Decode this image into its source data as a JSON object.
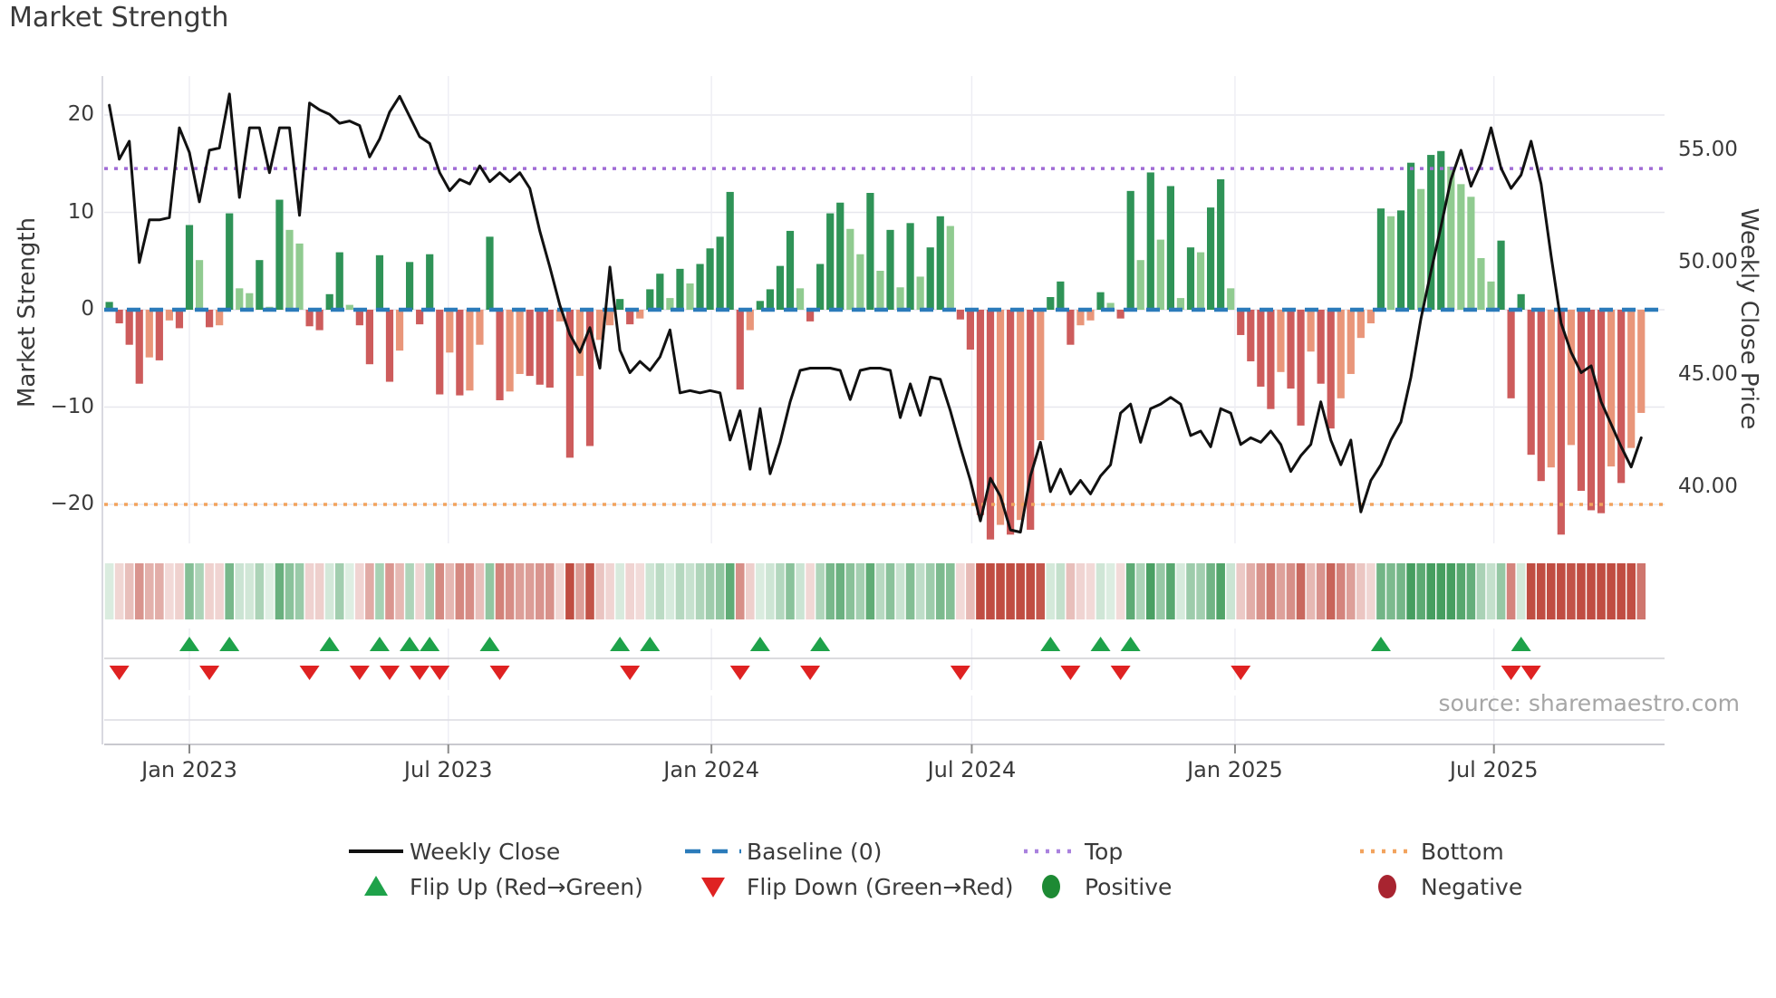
{
  "title": "Market Strength",
  "source": "source: sharemaestro.com",
  "y_left": {
    "label": "Market Strength",
    "ticks": [
      20,
      10,
      0,
      -10,
      -20
    ]
  },
  "y_right": {
    "label": "Weekly Close Price",
    "tick_labels": [
      "55.00",
      "50.00",
      "45.00",
      "40.00"
    ],
    "tick_values": [
      55,
      50,
      45,
      40
    ]
  },
  "x_axis": {
    "tick_labels": [
      "Jan 2023",
      "Jul 2023",
      "Jan 2024",
      "Jul 2024",
      "Jan 2025",
      "Jul 2025"
    ],
    "tick_weeks": [
      8.0,
      33.86,
      60.14,
      86.14,
      112.43,
      138.29
    ]
  },
  "legend": {
    "items": [
      {
        "label": "Weekly Close",
        "swatch": "line",
        "color": "#111111"
      },
      {
        "label": "Baseline (0)",
        "swatch": "dashes",
        "color": "#2b7bba"
      },
      {
        "label": "Top",
        "swatch": "dots",
        "color": "#a981de"
      },
      {
        "label": "Bottom",
        "swatch": "dots",
        "color": "#f2a35e"
      },
      {
        "label": "Flip Up (Red→Green)",
        "swatch": "triangle-up",
        "color": "#1ea24a"
      },
      {
        "label": "Flip Down (Green→Red)",
        "swatch": "triangle-down",
        "color": "#df2222"
      },
      {
        "label": "Positive",
        "swatch": "circle",
        "color": "#1d8a34"
      },
      {
        "label": "Negative",
        "swatch": "circle",
        "color": "#a82430"
      }
    ]
  },
  "colors": {
    "bar_pos_strong": "#2f9357",
    "bar_pos_soft": "#90cb90",
    "bar_neg_strong": "#cd5c5c",
    "bar_neg_soft": "#e9967a",
    "price_line": "#111111",
    "baseline": "#2b7bba",
    "top_line": "#a06cd5",
    "bottom_line": "#f2a35e",
    "flip_up": "#1ea24a",
    "flip_down": "#df2222",
    "grid": "#e7e7ee",
    "grid_v": "#ededf3",
    "axis_line": "#c9c9cf",
    "sub_line": "#dcdce2",
    "heat_pos_rgb": "70,158,96",
    "heat_neg_rgb": "192,77,66"
  },
  "chart_data": {
    "type": "bar+line",
    "x_unit": "weeks starting Nov 2022, one value per week",
    "title": "Market Strength",
    "ylabel_left": "Market Strength",
    "ylabel_right": "Weekly Close Price",
    "ylim_left": [
      -24,
      24
    ],
    "ylim_right": [
      37.5,
      58.3
    ],
    "top_level": 14.5,
    "bottom_level": -20,
    "baseline_level": 0,
    "legend_position": "bottom",
    "grid": true,
    "series": [
      {
        "name": "Strength",
        "type": "bar",
        "values": [
          0.8,
          -1.4,
          -3.6,
          -7.6,
          -4.9,
          -5.2,
          -1.1,
          -1.9,
          8.7,
          5.1,
          -1.8,
          -1.6,
          9.9,
          2.2,
          1.7,
          5.1,
          0.3,
          11.3,
          8.2,
          6.8,
          -1.7,
          -2.1,
          1.6,
          5.9,
          0.5,
          -1.6,
          -5.6,
          5.6,
          -7.4,
          -4.2,
          4.9,
          -1.5,
          5.7,
          -8.7,
          -4.4,
          -8.8,
          -8.3,
          -3.6,
          7.5,
          -9.3,
          -8.4,
          -6.6,
          -6.8,
          -7.7,
          -8.0,
          -1.2,
          -15.2,
          -6.8,
          -14.0,
          -3.1,
          -1.6,
          1.1,
          -1.5,
          -0.9,
          2.1,
          3.7,
          1.2,
          4.2,
          2.7,
          4.7,
          6.3,
          7.5,
          12.1,
          -8.2,
          -2.1,
          0.9,
          2.1,
          4.5,
          8.1,
          2.2,
          -1.2,
          4.7,
          9.9,
          11.0,
          8.3,
          5.7,
          12.0,
          4.0,
          8.2,
          2.3,
          8.9,
          3.4,
          6.4,
          9.6,
          8.6,
          -1.0,
          -4.1,
          -21.1,
          -23.6,
          -22.1,
          -23.1,
          -21.6,
          -22.6,
          -13.4,
          1.3,
          2.9,
          -3.6,
          -1.6,
          -1.1,
          1.8,
          0.7,
          -0.9,
          12.2,
          5.1,
          14.1,
          7.2,
          12.7,
          1.2,
          6.4,
          5.9,
          10.5,
          13.4,
          2.2,
          -2.6,
          -5.3,
          -7.9,
          -10.2,
          -6.4,
          -8.1,
          -11.9,
          -4.3,
          -7.6,
          -12.2,
          -9.1,
          -6.6,
          -2.9,
          -1.4,
          10.4,
          9.6,
          10.2,
          15.1,
          12.4,
          15.9,
          16.3,
          14.7,
          12.9,
          11.6,
          5.3,
          2.9,
          7.1,
          -9.1,
          1.6,
          -14.9,
          -17.6,
          -16.2,
          -23.1,
          -13.9,
          -18.6,
          -20.6,
          -20.9,
          -16.1,
          -17.8,
          -14.2,
          -10.6
        ]
      },
      {
        "name": "Weekly Close",
        "type": "line",
        "axis": "right",
        "values": [
          57.0,
          54.6,
          55.4,
          50.0,
          51.9,
          51.9,
          52.0,
          56.0,
          54.9,
          52.7,
          55.0,
          55.1,
          57.5,
          52.9,
          56.0,
          56.0,
          54.0,
          56.0,
          56.0,
          52.1,
          57.1,
          56.8,
          56.6,
          56.2,
          56.3,
          56.1,
          54.7,
          55.5,
          56.7,
          57.4,
          56.5,
          55.6,
          55.3,
          54.0,
          53.2,
          53.7,
          53.5,
          54.3,
          53.6,
          54.0,
          53.6,
          54.0,
          53.3,
          51.4,
          49.8,
          48.1,
          46.8,
          46.0,
          47.1,
          45.3,
          49.8,
          46.1,
          45.1,
          45.6,
          45.2,
          45.8,
          47.0,
          44.2,
          44.3,
          44.2,
          44.3,
          44.2,
          42.1,
          43.4,
          40.8,
          43.5,
          40.6,
          42.0,
          43.8,
          45.2,
          45.3,
          45.3,
          45.3,
          45.2,
          43.9,
          45.2,
          45.3,
          45.3,
          45.2,
          43.1,
          44.6,
          43.2,
          44.9,
          44.8,
          43.4,
          41.8,
          40.3,
          38.5,
          40.4,
          39.6,
          38.1,
          38.0,
          40.5,
          42.0,
          39.8,
          40.8,
          39.7,
          40.3,
          39.7,
          40.5,
          41.0,
          43.3,
          43.7,
          42.0,
          43.5,
          43.7,
          44.0,
          43.7,
          42.3,
          42.5,
          41.8,
          43.5,
          43.3,
          41.9,
          42.2,
          42.0,
          42.5,
          41.9,
          40.7,
          41.4,
          41.9,
          43.8,
          42.1,
          41.0,
          42.1,
          38.9,
          40.3,
          41.0,
          42.1,
          42.9,
          44.9,
          47.5,
          49.6,
          51.6,
          53.7,
          55.0,
          53.4,
          54.4,
          56.0,
          54.2,
          53.3,
          53.9,
          55.4,
          53.5,
          50.3,
          47.3,
          46.0,
          45.1,
          45.4,
          43.8,
          42.8,
          41.8,
          40.9,
          42.2
        ]
      }
    ],
    "markers_rule": "flip-up where bar sign turns negative-to-positive; flip-down where positive-to-negative",
    "heatmap": "same weekly values as Strength bars; green for positive, red for negative, opacity scales with magnitude"
  }
}
